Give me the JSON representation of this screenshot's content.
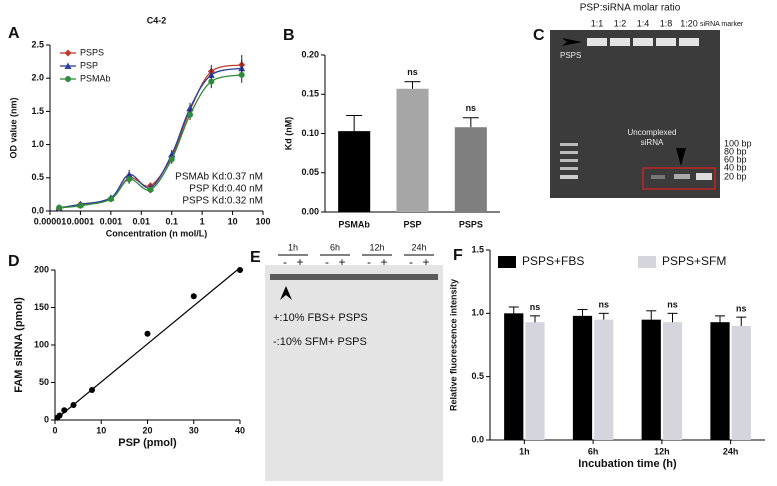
{
  "chart_data": [
    {
      "panel": "A",
      "type": "line",
      "title": "C4-2",
      "xlabel": "Concentration (n mol/L)",
      "ylabel": "OD value (nm)",
      "xscale": "log",
      "x": [
        2e-05,
        0.0001,
        0.001,
        0.004,
        0.02,
        0.1,
        0.4,
        2,
        20
      ],
      "series": [
        {
          "name": "PSPS",
          "color": "#c0392b",
          "marker": "diamond",
          "values": [
            0.04,
            0.1,
            0.18,
            0.5,
            0.38,
            0.82,
            1.52,
            2.1,
            2.2
          ],
          "errors": [
            0.02,
            0.03,
            0.04,
            0.08,
            0.05,
            0.08,
            0.08,
            0.1,
            0.15
          ]
        },
        {
          "name": "PSP",
          "color": "#2c3e9e",
          "marker": "triangle",
          "values": [
            0.05,
            0.1,
            0.2,
            0.55,
            0.35,
            0.85,
            1.55,
            2.05,
            2.15
          ],
          "errors": [
            0.02,
            0.03,
            0.04,
            0.07,
            0.05,
            0.07,
            0.08,
            0.1,
            0.12
          ]
        },
        {
          "name": "PSMAb",
          "color": "#2e8b3a",
          "marker": "circle",
          "values": [
            0.05,
            0.08,
            0.18,
            0.48,
            0.32,
            0.78,
            1.45,
            1.95,
            2.05
          ],
          "errors": [
            0.02,
            0.03,
            0.04,
            0.07,
            0.05,
            0.07,
            0.08,
            0.1,
            0.12
          ]
        }
      ],
      "xlim": [
        1e-05,
        100
      ],
      "xticks": [
        1e-05,
        0.0001,
        0.001,
        0.01,
        0.1,
        1,
        10,
        100
      ],
      "ylim": [
        0,
        2.5
      ],
      "yticks": [
        {
          "value": 0,
          "label": "0.0"
        },
        0.5,
        {
          "value": 1,
          "label": "1.0"
        },
        1.5,
        {
          "value": 2,
          "label": "2.0"
        },
        2.5
      ],
      "annotations": [
        "PSMAb Kd:0.37 nM",
        "PSP Kd:0.40 nM",
        "PSPS Kd:0.32 nM"
      ]
    },
    {
      "panel": "B",
      "type": "bar",
      "ylabel": "Kd (nM)",
      "categories": [
        "PSMAb",
        "PSP",
        "PSPS"
      ],
      "values": [
        0.103,
        0.157,
        0.108
      ],
      "errors": [
        0.02,
        0.009,
        0.012
      ],
      "colors": [
        "#000000",
        "#a6a6a6",
        "#7f7f7f"
      ],
      "significance": [
        null,
        "ns",
        "ns"
      ],
      "ylim": [
        0,
        0.2
      ],
      "yticks": [
        {
          "value": 0,
          "label": "0.00"
        },
        0.05,
        {
          "value": 0.1,
          "label": "0.10"
        },
        0.15,
        {
          "value": 0.2,
          "label": "0.20"
        }
      ]
    },
    {
      "panel": "D",
      "type": "scatter",
      "xlabel": "PSP (pmol)",
      "ylabel": "FAM siRNA (pmol)",
      "x": [
        0.5,
        1,
        2,
        4,
        8,
        20,
        30,
        40
      ],
      "values": [
        3,
        6,
        13,
        20,
        40,
        115,
        165,
        200
      ],
      "color": "#000000",
      "fit": {
        "x": [
          0,
          40
        ],
        "y": [
          0,
          203
        ]
      },
      "xlim": [
        0,
        40
      ],
      "xticks": [
        0,
        10,
        20,
        30,
        40
      ],
      "ylim": [
        0,
        200
      ],
      "yticks": [
        0,
        50,
        100,
        150,
        200
      ]
    },
    {
      "panel": "F",
      "type": "grouped_bar",
      "xlabel": "Incubation time (h)",
      "ylabel": "Relative fluorescence intensity",
      "categories": [
        "1h",
        "6h",
        "12h",
        "24h"
      ],
      "series": [
        {
          "name": "PSPS+FBS",
          "color": "#000000",
          "values": [
            1.0,
            0.98,
            0.95,
            0.93
          ],
          "errors": [
            0.05,
            0.05,
            0.07,
            0.05
          ]
        },
        {
          "name": "PSPS+SFM",
          "color": "#d5d5de",
          "values": [
            0.93,
            0.95,
            0.93,
            0.9
          ],
          "errors": [
            0.05,
            0.05,
            0.07,
            0.07
          ],
          "significance": [
            "ns",
            "ns",
            "ns",
            "ns"
          ]
        }
      ],
      "ylim": [
        0,
        1.5
      ],
      "yticks": [
        {
          "value": 0,
          "label": "0.0"
        },
        0.5,
        {
          "value": 1,
          "label": "1.0"
        },
        1.5
      ]
    }
  ],
  "gel_C": {
    "panel": "C",
    "title": "PSP:siRNA molar ratio",
    "lanes": [
      "1:1",
      "1:2",
      "1:4",
      "1:8",
      "1:20",
      "siRNA marker"
    ],
    "arrow_label": "PSPS",
    "free_label": [
      "Uncomplexed",
      "siRNA"
    ],
    "markers": [
      "100 bp",
      "80 bp",
      "60 bp",
      "40 bp",
      "20 bp"
    ]
  },
  "gel_E": {
    "panel": "E",
    "times": [
      "1h",
      "6h",
      "12h",
      "24h"
    ],
    "signs": [
      "-",
      "+"
    ],
    "legend": [
      "+:10% FBS+ PSPS",
      "-:10% SFM+ PSPS"
    ]
  }
}
